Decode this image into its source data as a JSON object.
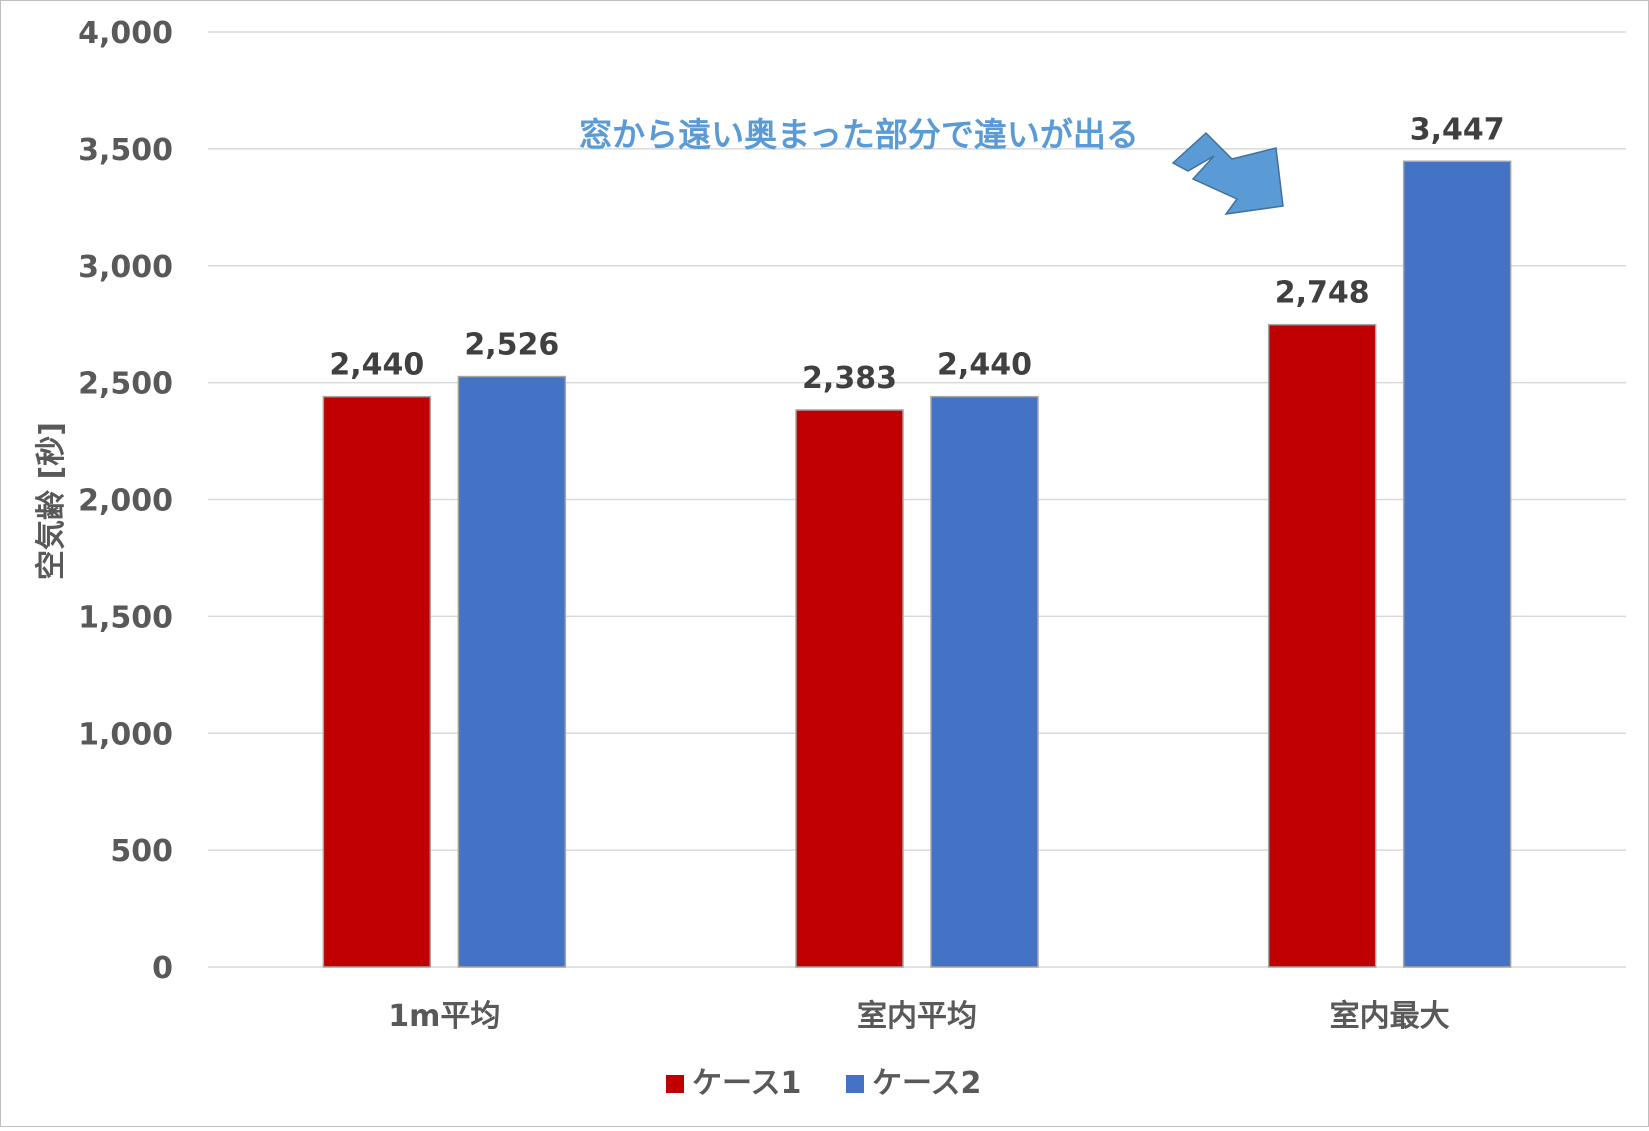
{
  "chart_data": {
    "type": "bar",
    "categories": [
      "1m平均",
      "室内平均",
      "室内最大"
    ],
    "series": [
      {
        "name": "ケース1",
        "color": "#c00000",
        "values": [
          2440,
          2383,
          2748
        ]
      },
      {
        "name": "ケース2",
        "color": "#4472c4",
        "values": [
          2526,
          2440,
          3447
        ]
      }
    ],
    "data_labels": [
      [
        "2,440",
        "2,383",
        "2,748"
      ],
      [
        "2,526",
        "2,440",
        "3,447"
      ]
    ],
    "ylabel": "空気齢 [秒]",
    "ylim": [
      0,
      4000
    ],
    "yticks": [
      0,
      500,
      1000,
      1500,
      2000,
      2500,
      3000,
      3500,
      4000
    ],
    "ytick_labels": [
      "0",
      "500",
      "1,000",
      "1,500",
      "2,000",
      "2,500",
      "3,000",
      "3,500",
      "4,000"
    ],
    "grid": true,
    "legend_position": "bottom",
    "annotation": {
      "text": "窓から遠い奥まった部分で違いが出る",
      "color": "#5b9bd5",
      "arrow_color": "#5b9bd5"
    }
  }
}
